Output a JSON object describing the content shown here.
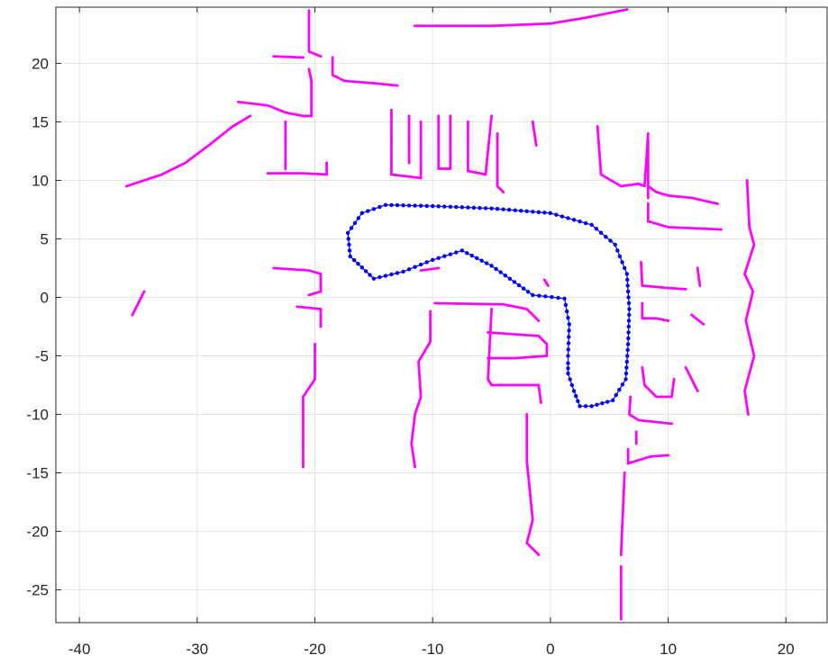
{
  "chart_data": {
    "type": "scatter",
    "title": "",
    "xlabel": "",
    "ylabel": "",
    "xlim": [
      -42,
      23.5
    ],
    "ylim": [
      -27.8,
      24.8
    ],
    "grid": true,
    "x_ticks": [
      -40,
      -30,
      -20,
      -10,
      0,
      10,
      20
    ],
    "y_ticks": [
      -25,
      -20,
      -15,
      -10,
      -5,
      0,
      5,
      10,
      15,
      20
    ],
    "x_tick_labels": [
      "-40",
      "-30",
      "-20",
      "-10",
      "0",
      "10",
      "20"
    ],
    "y_tick_labels": [
      "-25",
      "-20",
      "-15",
      "-10",
      "-5",
      "0",
      "5",
      "10",
      "15",
      "20"
    ],
    "series": [
      {
        "color": "#ff00ff",
        "marker": "dot",
        "polylines": [
          [
            [
              -11.5,
              23.2
            ],
            [
              -5,
              23.2
            ],
            [
              0,
              23.4
            ],
            [
              3,
              23.9
            ],
            [
              6.5,
              24.6
            ]
          ],
          [
            [
              -20.5,
              24.5
            ],
            [
              -20.5,
              21
            ],
            [
              -19.5,
              20.6
            ]
          ],
          [
            [
              -23.5,
              20.6
            ],
            [
              -21,
              20.5
            ]
          ],
          [
            [
              -18.5,
              20.5
            ],
            [
              -18.5,
              19
            ],
            [
              -17.5,
              18.5
            ],
            [
              -15,
              18.3
            ],
            [
              -13,
              18.1
            ]
          ],
          [
            [
              -26.5,
              16.7
            ],
            [
              -24,
              16.4
            ],
            [
              -22.5,
              15.8
            ],
            [
              -21,
              15.5
            ],
            [
              -20.3,
              15.5
            ],
            [
              -20.3,
              18.5
            ],
            [
              -20.5,
              19.5
            ]
          ],
          [
            [
              -36,
              9.5
            ],
            [
              -33,
              10.5
            ],
            [
              -31,
              11.5
            ],
            [
              -29,
              13
            ],
            [
              -27,
              14.6
            ],
            [
              -25.5,
              15.5
            ]
          ],
          [
            [
              -24,
              10.6
            ],
            [
              -21,
              10.6
            ],
            [
              -19,
              10.5
            ],
            [
              -19,
              11.5
            ]
          ],
          [
            [
              -22.5,
              15
            ],
            [
              -22.5,
              11
            ]
          ],
          [
            [
              -13.5,
              16
            ],
            [
              -13.5,
              10.5
            ],
            [
              -11,
              10.2
            ],
            [
              -11,
              15
            ]
          ],
          [
            [
              -12,
              11.5
            ],
            [
              -12,
              15.5
            ]
          ],
          [
            [
              -9.5,
              15.5
            ],
            [
              -9.5,
              11
            ],
            [
              -8.5,
              11
            ],
            [
              -8.5,
              15.5
            ]
          ],
          [
            [
              -7,
              15
            ],
            [
              -7,
              10.8
            ],
            [
              -5.5,
              10.5
            ],
            [
              -5,
              15.5
            ]
          ],
          [
            [
              -4.5,
              14
            ],
            [
              -4.5,
              9.5
            ],
            [
              -4,
              9
            ]
          ],
          [
            [
              -1.5,
              15
            ],
            [
              -1.2,
              13
            ]
          ],
          [
            [
              4,
              14.6
            ],
            [
              4.3,
              10.5
            ],
            [
              6,
              9.5
            ],
            [
              7.5,
              9.7
            ],
            [
              8,
              9.5
            ],
            [
              8.3,
              14
            ]
          ],
          [
            [
              8.3,
              9.5
            ],
            [
              9,
              9
            ],
            [
              10,
              8.7
            ],
            [
              12,
              8.5
            ],
            [
              14.2,
              8
            ]
          ],
          [
            [
              8.3,
              13.5
            ],
            [
              8.3,
              8.5
            ]
          ],
          [
            [
              8.3,
              8
            ],
            [
              8.3,
              6.5
            ],
            [
              10,
              6
            ],
            [
              14.5,
              5.8
            ]
          ],
          [
            [
              16.7,
              10
            ],
            [
              16.9,
              6
            ],
            [
              17.3,
              4.5
            ],
            [
              16.5,
              2
            ],
            [
              17.2,
              0.5
            ],
            [
              16.6,
              -2
            ],
            [
              17.3,
              -5
            ],
            [
              16.5,
              -8
            ],
            [
              16.8,
              -10
            ]
          ],
          [
            [
              -23.5,
              2.5
            ],
            [
              -20.5,
              2.3
            ],
            [
              -19.5,
              2
            ],
            [
              -19.5,
              0.5
            ],
            [
              -20.5,
              0.2
            ]
          ],
          [
            [
              -35.5,
              -1.5
            ],
            [
              -34.5,
              0.5
            ]
          ],
          [
            [
              -21.5,
              -0.8
            ],
            [
              -19.5,
              -1
            ],
            [
              -19.5,
              -2.5
            ]
          ],
          [
            [
              -20,
              -4
            ],
            [
              -20,
              -7
            ],
            [
              -21,
              -8.5
            ],
            [
              -21,
              -13
            ],
            [
              -21,
              -14.5
            ]
          ],
          [
            [
              -9.8,
              -0.5
            ],
            [
              -4,
              -0.6
            ],
            [
              -2,
              -1
            ],
            [
              -1,
              -2
            ]
          ],
          [
            [
              -5,
              -1
            ],
            [
              -5.3,
              -7
            ],
            [
              -5,
              -7.5
            ],
            [
              -1,
              -7.5
            ],
            [
              -0.8,
              -9
            ]
          ],
          [
            [
              -5.3,
              -3
            ],
            [
              -1,
              -3.3
            ],
            [
              -0.3,
              -4
            ],
            [
              -0.3,
              -5
            ],
            [
              -3,
              -5.2
            ],
            [
              -5.3,
              -5.2
            ]
          ],
          [
            [
              -10.2,
              -1.2
            ],
            [
              -10.2,
              -3.8
            ],
            [
              -11.2,
              -5.5
            ],
            [
              -11,
              -8.5
            ],
            [
              -11.5,
              -10
            ],
            [
              -11.8,
              -12.5
            ],
            [
              -11.5,
              -14.5
            ]
          ],
          [
            [
              -2,
              -10
            ],
            [
              -2,
              -14
            ],
            [
              -1.5,
              -19
            ],
            [
              -2,
              -21
            ],
            [
              -1,
              -22
            ]
          ],
          [
            [
              -11,
              2.3
            ],
            [
              -9.5,
              2.5
            ]
          ],
          [
            [
              -0.5,
              1.5
            ],
            [
              -0.2,
              1
            ]
          ],
          [
            [
              7.7,
              3
            ],
            [
              7.8,
              1
            ],
            [
              10,
              0.8
            ],
            [
              11.5,
              0.7
            ]
          ],
          [
            [
              7.8,
              -0.5
            ],
            [
              7.8,
              -1.8
            ],
            [
              9,
              -1.8
            ],
            [
              10,
              -2
            ]
          ],
          [
            [
              12.5,
              2.5
            ],
            [
              12.7,
              1
            ]
          ],
          [
            [
              12,
              -1.5
            ],
            [
              13,
              -2.3
            ]
          ],
          [
            [
              7.8,
              -6
            ],
            [
              8,
              -7.5
            ],
            [
              9,
              -8.5
            ],
            [
              10.3,
              -8.5
            ],
            [
              10.5,
              -7
            ]
          ],
          [
            [
              6.8,
              -8.5
            ],
            [
              6.7,
              -10
            ],
            [
              7.5,
              -10.5
            ],
            [
              10.3,
              -10.8
            ]
          ],
          [
            [
              7.3,
              -11.5
            ],
            [
              7.3,
              -12.5
            ]
          ],
          [
            [
              6.6,
              -13
            ],
            [
              6.6,
              -14.2
            ],
            [
              8.5,
              -13.6
            ],
            [
              10,
              -13.5
            ]
          ],
          [
            [
              6.3,
              -15
            ],
            [
              6,
              -22
            ]
          ],
          [
            [
              6,
              -23
            ],
            [
              6,
              -27.5
            ]
          ],
          [
            [
              11.5,
              -6
            ],
            [
              12.5,
              -8
            ]
          ]
        ]
      },
      {
        "color": "#0000ff",
        "marker": "o",
        "points": [
          [
            1.5,
            -5
          ],
          [
            1.6,
            -2.3
          ],
          [
            1.2,
            -0.1
          ],
          [
            -1.5,
            0.2
          ],
          [
            -5,
            2.7
          ],
          [
            -7.5,
            4
          ],
          [
            -10,
            3.2
          ],
          [
            -12.5,
            2.2
          ],
          [
            -15,
            1.6
          ],
          [
            -17,
            3.5
          ],
          [
            -17.2,
            5.5
          ],
          [
            -16,
            7.2
          ],
          [
            -14,
            7.9
          ],
          [
            -10,
            7.8
          ],
          [
            -5,
            7.6
          ],
          [
            0,
            7.2
          ],
          [
            3.5,
            6.2
          ],
          [
            5.5,
            4.5
          ],
          [
            6.5,
            2
          ],
          [
            6.7,
            -1
          ],
          [
            6.6,
            -4
          ],
          [
            6.4,
            -7
          ],
          [
            5.3,
            -8.8
          ],
          [
            3.5,
            -9.3
          ],
          [
            2.5,
            -9.3
          ],
          [
            2,
            -8
          ],
          [
            1.5,
            -6.5
          ],
          [
            1.5,
            -5.2
          ]
        ]
      }
    ]
  }
}
